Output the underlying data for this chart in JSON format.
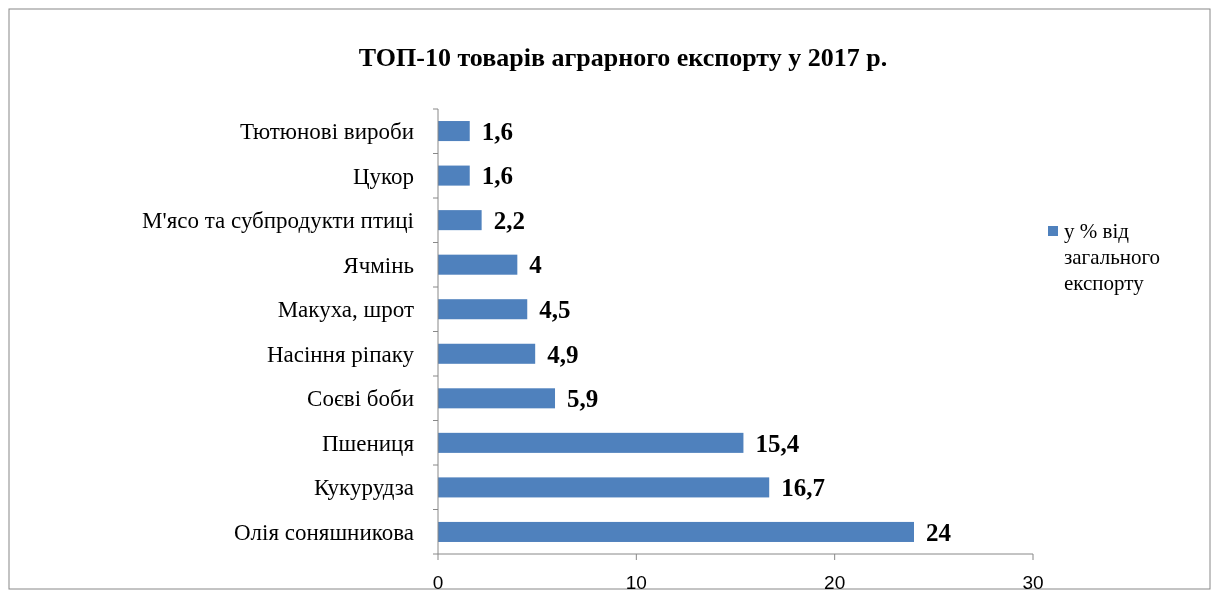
{
  "chart_data": {
    "type": "bar",
    "orientation": "horizontal",
    "title": "ТОП-10 товарів аграрного експорту у 2017 р.",
    "categories": [
      "Тютюнові вироби",
      "Цукор",
      "М'ясо та субпродукти птиці",
      "Ячмінь",
      "Макуха, шрот",
      "Насіння ріпаку",
      "Соєві боби",
      "Пшениця",
      "Кукурудза",
      "Олія соняшникова"
    ],
    "series": [
      {
        "name": "у % від загального експорту",
        "color": "#4f81bd",
        "values": [
          1.6,
          1.6,
          2.2,
          4,
          4.5,
          4.9,
          5.9,
          15.4,
          16.7,
          24
        ],
        "value_labels": [
          "1,6",
          "1,6",
          "2,2",
          "4",
          "4,5",
          "4,9",
          "5,9",
          "15,4",
          "16,7",
          "24"
        ]
      }
    ],
    "xlim": [
      0,
      30
    ],
    "xticks": [
      0,
      10,
      20,
      30
    ],
    "grid": false,
    "legend": "right"
  }
}
